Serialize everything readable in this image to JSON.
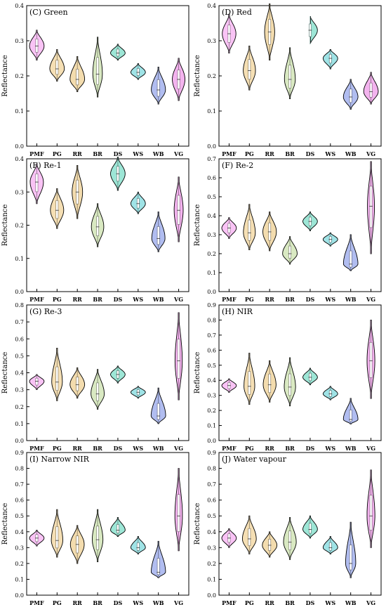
{
  "chart_data": [
    {
      "type": "violin",
      "panel": "(C) Green",
      "ylabel": "Reflectance",
      "ylim": [
        0,
        0.4
      ],
      "yticks": [
        0,
        0.1,
        0.2,
        0.3,
        0.4
      ],
      "categories": [
        "PMF",
        "PG",
        "RR",
        "BR",
        "DS",
        "WS",
        "WB",
        "VG"
      ],
      "medians": [
        0.285,
        0.22,
        0.19,
        0.205,
        0.265,
        0.21,
        0.16,
        0.19
      ],
      "mins": [
        0.245,
        0.185,
        0.155,
        0.14,
        0.245,
        0.19,
        0.12,
        0.13
      ],
      "maxs": [
        0.33,
        0.275,
        0.255,
        0.31,
        0.29,
        0.235,
        0.225,
        0.25
      ],
      "colors": [
        "#f9c3f5",
        "#f5dfb4",
        "#f3dcae",
        "#d9e9c2",
        "#9de6d6",
        "#9fe3e6",
        "#b1bdf0",
        "#f3b3ee"
      ]
    },
    {
      "type": "violin",
      "panel": "(D) Red",
      "ylabel": "Reflectance",
      "ylim": [
        0,
        0.4
      ],
      "yticks": [
        0,
        0.1,
        0.2,
        0.3,
        0.4
      ],
      "categories": [
        "PMF",
        "PG",
        "RR",
        "BR",
        "DS",
        "WS",
        "WB",
        "VG"
      ],
      "medians": [
        0.32,
        0.215,
        0.325,
        0.19,
        0.33,
        0.25,
        0.14,
        0.155
      ],
      "mins": [
        0.265,
        0.16,
        0.245,
        0.135,
        0.29,
        0.22,
        0.105,
        0.12
      ],
      "maxs": [
        0.375,
        0.285,
        0.405,
        0.28,
        0.37,
        0.275,
        0.19,
        0.21
      ],
      "colors": [
        "#f9c3f5",
        "#f5dfb4",
        "#f3dcae",
        "#d9e9c2",
        "#9de6d6",
        "#9fe3e6",
        "#b1bdf0",
        "#f3b3ee"
      ]
    },
    {
      "type": "violin",
      "panel": "(E) Re-1",
      "ylabel": "Reflectance",
      "ylim": [
        0,
        0.4
      ],
      "yticks": [
        0,
        0.1,
        0.2,
        0.3,
        0.4
      ],
      "categories": [
        "PMF",
        "PG",
        "RR",
        "BR",
        "DS",
        "WS",
        "WB",
        "VG"
      ],
      "medians": [
        0.33,
        0.245,
        0.3,
        0.195,
        0.355,
        0.265,
        0.16,
        0.245
      ],
      "mins": [
        0.265,
        0.19,
        0.22,
        0.135,
        0.305,
        0.235,
        0.12,
        0.15
      ],
      "maxs": [
        0.385,
        0.31,
        0.38,
        0.265,
        0.405,
        0.3,
        0.24,
        0.345
      ],
      "colors": [
        "#f9c3f5",
        "#f5dfb4",
        "#f3dcae",
        "#d9e9c2",
        "#9de6d6",
        "#9fe3e6",
        "#b1bdf0",
        "#f3b3ee"
      ]
    },
    {
      "type": "violin",
      "panel": "(F) Re-2",
      "ylabel": "Reflectance",
      "ylim": [
        0,
        0.7
      ],
      "yticks": [
        0,
        0.1,
        0.2,
        0.3,
        0.4,
        0.5,
        0.6,
        0.7
      ],
      "categories": [
        "PMF",
        "PG",
        "RR",
        "BR",
        "DS",
        "WS",
        "WB",
        "VG"
      ],
      "medians": [
        0.335,
        0.31,
        0.315,
        0.2,
        0.37,
        0.275,
        0.145,
        0.45
      ],
      "mins": [
        0.28,
        0.22,
        0.215,
        0.145,
        0.32,
        0.24,
        0.11,
        0.2
      ],
      "maxs": [
        0.39,
        0.46,
        0.42,
        0.29,
        0.42,
        0.31,
        0.3,
        0.685
      ],
      "colors": [
        "#f9c3f5",
        "#f5dfb4",
        "#f3dcae",
        "#d9e9c2",
        "#9de6d6",
        "#9fe3e6",
        "#b1bdf0",
        "#f3b3ee"
      ]
    },
    {
      "type": "violin",
      "panel": "(G) Re-3",
      "ylabel": "Reflectance",
      "ylim": [
        0,
        0.8
      ],
      "yticks": [
        0,
        0.1,
        0.2,
        0.3,
        0.4,
        0.5,
        0.6,
        0.7,
        0.8
      ],
      "categories": [
        "PMF",
        "PG",
        "RR",
        "BR",
        "DS",
        "WS",
        "WB",
        "VG"
      ],
      "medians": [
        0.35,
        0.345,
        0.33,
        0.275,
        0.39,
        0.285,
        0.145,
        0.47
      ],
      "mins": [
        0.3,
        0.235,
        0.25,
        0.185,
        0.34,
        0.25,
        0.1,
        0.24
      ],
      "maxs": [
        0.39,
        0.545,
        0.43,
        0.42,
        0.44,
        0.32,
        0.31,
        0.755
      ],
      "colors": [
        "#f9c3f5",
        "#f5dfb4",
        "#f3dcae",
        "#d9e9c2",
        "#9de6d6",
        "#9fe3e6",
        "#b1bdf0",
        "#f3b3ee"
      ]
    },
    {
      "type": "violin",
      "panel": "(H) NIR",
      "ylabel": "Reflectance",
      "ylim": [
        0,
        0.9
      ],
      "yticks": [
        0,
        0.1,
        0.2,
        0.3,
        0.4,
        0.5,
        0.6,
        0.7,
        0.8,
        0.9
      ],
      "categories": [
        "PMF",
        "PG",
        "RR",
        "BR",
        "DS",
        "WS",
        "WB",
        "VG"
      ],
      "medians": [
        0.365,
        0.36,
        0.37,
        0.355,
        0.42,
        0.31,
        0.14,
        0.53
      ],
      "mins": [
        0.32,
        0.24,
        0.255,
        0.23,
        0.37,
        0.27,
        0.11,
        0.28
      ],
      "maxs": [
        0.41,
        0.58,
        0.53,
        0.55,
        0.48,
        0.36,
        0.28,
        0.8
      ],
      "colors": [
        "#f9c3f5",
        "#f5dfb4",
        "#f3dcae",
        "#d9e9c2",
        "#9de6d6",
        "#9fe3e6",
        "#b1bdf0",
        "#f3b3ee"
      ]
    },
    {
      "type": "violin",
      "panel": "(I) Narrow NIR",
      "ylabel": "Reflectance",
      "ylim": [
        0,
        0.9
      ],
      "yticks": [
        0,
        0.1,
        0.2,
        0.3,
        0.4,
        0.5,
        0.6,
        0.7,
        0.8,
        0.9
      ],
      "categories": [
        "PMF",
        "PG",
        "RR",
        "BR",
        "DS",
        "WS",
        "WB",
        "VG"
      ],
      "medians": [
        0.36,
        0.345,
        0.32,
        0.35,
        0.41,
        0.3,
        0.145,
        0.5
      ],
      "mins": [
        0.31,
        0.24,
        0.2,
        0.21,
        0.37,
        0.26,
        0.11,
        0.28
      ],
      "maxs": [
        0.41,
        0.54,
        0.44,
        0.54,
        0.49,
        0.37,
        0.34,
        0.8
      ],
      "colors": [
        "#f9c3f5",
        "#f5dfb4",
        "#f3dcae",
        "#d9e9c2",
        "#9de6d6",
        "#9fe3e6",
        "#b1bdf0",
        "#f3b3ee"
      ]
    },
    {
      "type": "violin",
      "panel": "(J) Water vapour",
      "ylabel": "Reflectance",
      "ylim": [
        0,
        0.9
      ],
      "yticks": [
        0,
        0.1,
        0.2,
        0.3,
        0.4,
        0.5,
        0.6,
        0.7,
        0.8,
        0.9
      ],
      "categories": [
        "PMF",
        "PG",
        "RR",
        "BR",
        "DS",
        "WS",
        "WB",
        "VG"
      ],
      "medians": [
        0.36,
        0.355,
        0.315,
        0.335,
        0.415,
        0.3,
        0.2,
        0.5
      ],
      "mins": [
        0.3,
        0.26,
        0.24,
        0.225,
        0.36,
        0.26,
        0.11,
        0.3
      ],
      "maxs": [
        0.42,
        0.5,
        0.4,
        0.49,
        0.5,
        0.37,
        0.46,
        0.79
      ],
      "colors": [
        "#f9c3f5",
        "#f5dfb4",
        "#f3dcae",
        "#d9e9c2",
        "#9de6d6",
        "#9fe3e6",
        "#b1bdf0",
        "#f3b3ee"
      ]
    }
  ]
}
